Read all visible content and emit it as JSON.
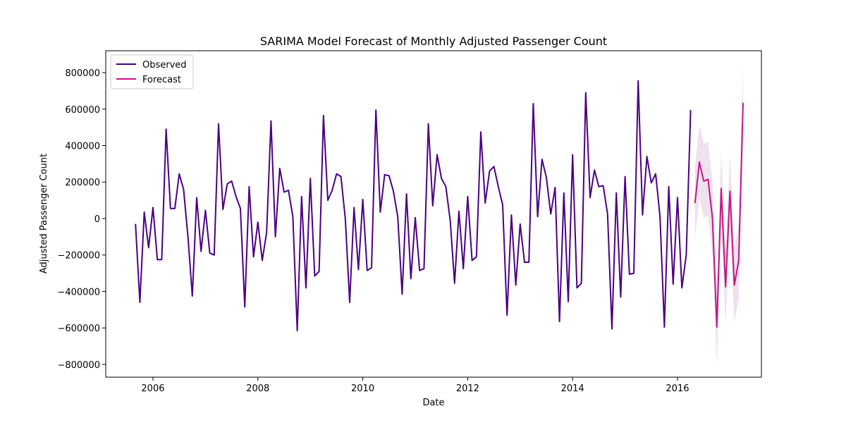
{
  "chart_data": {
    "type": "line",
    "title": "SARIMA Model Forecast of Monthly Adjusted Passenger Count",
    "xlabel": "Date",
    "ylabel": "Adjusted Passenger Count",
    "xlim": [
      2005.1,
      2017.6
    ],
    "ylim": [
      -870000,
      920000
    ],
    "x_ticks": [
      2006,
      2008,
      2010,
      2012,
      2014,
      2016
    ],
    "y_ticks": [
      -800000,
      -600000,
      -400000,
      -200000,
      0,
      200000,
      400000,
      600000,
      800000
    ],
    "grid": false,
    "legend": "upper-left",
    "colors": {
      "observed": "#4b0082",
      "forecast": "#c71585",
      "band": "#d8bfd8"
    },
    "series": [
      {
        "name": "Observed",
        "x_start": "2005-09",
        "values": [
          -30000,
          -460000,
          35000,
          -160000,
          60000,
          -225000,
          -225000,
          490000,
          55000,
          55000,
          245000,
          160000,
          -100000,
          -425000,
          115000,
          -180000,
          45000,
          -190000,
          -200000,
          520000,
          50000,
          190000,
          205000,
          120000,
          55000,
          -485000,
          175000,
          -210000,
          -20000,
          -230000,
          -75000,
          535000,
          -100000,
          275000,
          145000,
          155000,
          10000,
          -615000,
          120000,
          -380000,
          220000,
          -315000,
          -290000,
          565000,
          100000,
          155000,
          245000,
          230000,
          0,
          -460000,
          60000,
          -280000,
          105000,
          -285000,
          -270000,
          595000,
          35000,
          240000,
          235000,
          150000,
          10000,
          -415000,
          135000,
          -330000,
          5000,
          -285000,
          -275000,
          520000,
          70000,
          350000,
          220000,
          175000,
          -10000,
          -355000,
          40000,
          -275000,
          120000,
          -230000,
          -210000,
          475000,
          85000,
          260000,
          285000,
          175000,
          75000,
          -530000,
          20000,
          -365000,
          -30000,
          -240000,
          -240000,
          630000,
          10000,
          325000,
          225000,
          25000,
          170000,
          -565000,
          140000,
          -455000,
          350000,
          -380000,
          -355000,
          690000,
          115000,
          265000,
          175000,
          180000,
          25000,
          -605000,
          140000,
          -430000,
          230000,
          -305000,
          -300000,
          755000,
          20000,
          340000,
          195000,
          245000,
          10000,
          -595000,
          175000,
          -360000,
          115000,
          -380000,
          -200000,
          595000
        ]
      },
      {
        "name": "Forecast",
        "x_start": "2016-05",
        "values": [
          85000,
          310000,
          205000,
          215000,
          0,
          -595000,
          165000,
          -375000,
          150000,
          -365000,
          -230000,
          635000
        ],
        "lower": [
          -110000,
          110000,
          5000,
          15000,
          -200000,
          -800000,
          -40000,
          -580000,
          -55000,
          -570000,
          -435000,
          430000
        ],
        "upper": [
          280000,
          510000,
          410000,
          420000,
          200000,
          -390000,
          370000,
          -170000,
          355000,
          -160000,
          -25000,
          840000
        ]
      }
    ]
  }
}
